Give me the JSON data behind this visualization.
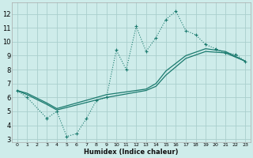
{
  "xlabel": "Humidex (Indice chaleur)",
  "bg_color": "#ceecea",
  "grid_color": "#aacfcd",
  "line_color": "#1a7a6e",
  "xlim": [
    -0.5,
    23.5
  ],
  "ylim": [
    2.8,
    12.8
  ],
  "xticks": [
    0,
    1,
    2,
    3,
    4,
    5,
    6,
    7,
    8,
    9,
    10,
    11,
    12,
    13,
    14,
    15,
    16,
    17,
    18,
    19,
    20,
    21,
    22,
    23
  ],
  "yticks": [
    3,
    4,
    5,
    6,
    7,
    8,
    9,
    10,
    11,
    12
  ],
  "line1_x": [
    0,
    1,
    3,
    4,
    5,
    6,
    7,
    8,
    9,
    10,
    11,
    12,
    13,
    14,
    15,
    16,
    17,
    18,
    19,
    20,
    21,
    22,
    23
  ],
  "line1_y": [
    6.5,
    6.0,
    4.5,
    5.0,
    3.2,
    3.4,
    4.5,
    5.8,
    6.0,
    9.4,
    8.0,
    11.1,
    9.3,
    10.3,
    11.6,
    12.2,
    10.8,
    10.5,
    9.8,
    9.5,
    9.2,
    9.1,
    8.6
  ],
  "line2_x": [
    0,
    1,
    3,
    4,
    9,
    13,
    14,
    15,
    17,
    19,
    21,
    23
  ],
  "line2_y": [
    6.5,
    6.2,
    5.5,
    5.1,
    6.0,
    6.5,
    6.8,
    7.6,
    8.8,
    9.3,
    9.2,
    8.6
  ],
  "line3_x": [
    0,
    1,
    3,
    4,
    9,
    13,
    14,
    15,
    17,
    19,
    21,
    23
  ],
  "line3_y": [
    6.5,
    6.3,
    5.6,
    5.2,
    6.2,
    6.6,
    7.0,
    7.9,
    9.0,
    9.5,
    9.3,
    8.6
  ]
}
